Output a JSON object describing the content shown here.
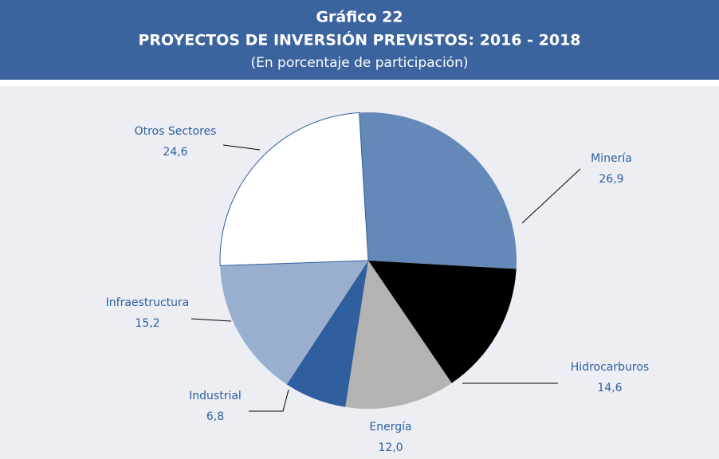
{
  "chart_data": {
    "type": "pie",
    "title": "Gráfico 22",
    "subtitle": "PROYECTOS DE INVERSIÓN PREVISTOS: 2016 - 2018",
    "note": "(En porcentaje de participación)",
    "categories": [
      "Minería",
      "Hidrocarburos",
      "Energía",
      "Industrial",
      "Infraestructura",
      "Otros Sectores"
    ],
    "values": [
      26.9,
      14.6,
      12.0,
      6.8,
      15.2,
      24.6
    ],
    "value_labels": [
      "26,9",
      "14,6",
      "12,0",
      "6,8",
      "15,2",
      "24,6"
    ],
    "colors": [
      "#6489b9",
      "#000000",
      "#b3b3b3",
      "#2f5f9e",
      "#98afd0",
      "#ffffff"
    ]
  }
}
